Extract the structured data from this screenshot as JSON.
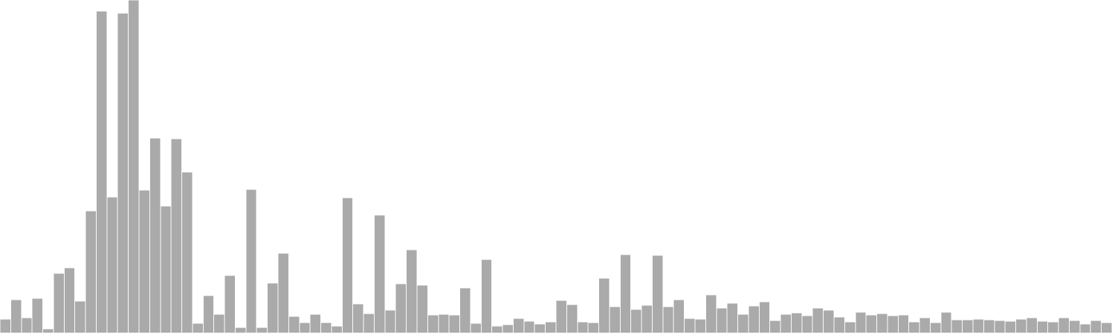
{
  "chart_data": {
    "type": "bar",
    "title": "",
    "xlabel": "",
    "ylabel": "",
    "grid": false,
    "legend": "none",
    "bar_color": "#aaaaaa",
    "ylim": [
      0,
      480
    ],
    "values": [
      20,
      48,
      22,
      50,
      6,
      86,
      94,
      46,
      176,
      464,
      196,
      461,
      480,
      206,
      281,
      183,
      280,
      232,
      14,
      54,
      27,
      83,
      8,
      207,
      8,
      72,
      115,
      24,
      15,
      27,
      15,
      10,
      195,
      42,
      28,
      170,
      33,
      71,
      120,
      69,
      26,
      27,
      26,
      65,
      14,
      106,
      10,
      12,
      21,
      17,
      13,
      16,
      47,
      41,
      16,
      15,
      79,
      38,
      113,
      34,
      40,
      112,
      38,
      48,
      21,
      20,
      55,
      36,
      43,
      27,
      39,
      45,
      18,
      27,
      29,
      25,
      36,
      33,
      23,
      16,
      30,
      26,
      28,
      25,
      26,
      16,
      22,
      15,
      30,
      19,
      19,
      20,
      19,
      18,
      17,
      20,
      22,
      17,
      16,
      22,
      18,
      13,
      18,
      15
    ]
  }
}
